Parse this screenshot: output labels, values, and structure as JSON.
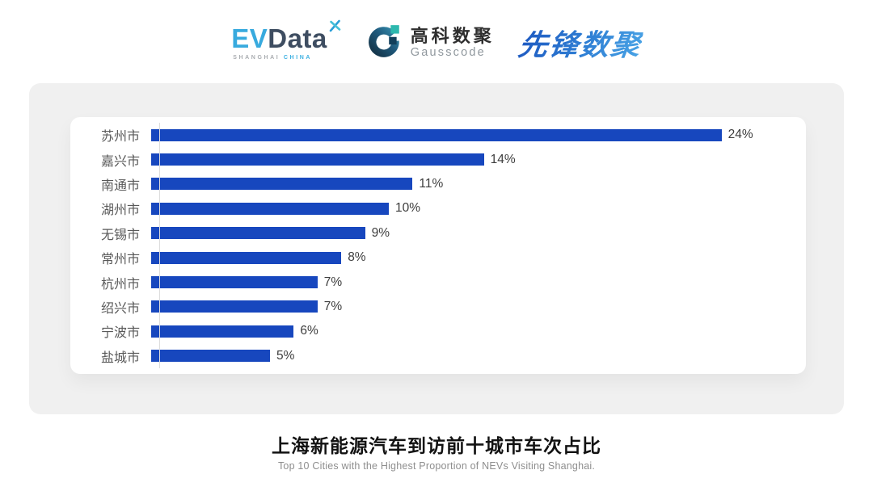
{
  "header": {
    "logos": {
      "evdata": {
        "ev": "EV",
        "data": "Data",
        "sub_left": "SHANGHAI",
        "sub_right": "CHINA"
      },
      "gausscode": {
        "cn": "高科数聚",
        "en": "Gausscode"
      },
      "pioneer": {
        "text": "先锋数聚"
      }
    }
  },
  "chart_data": {
    "type": "bar",
    "orientation": "horizontal",
    "categories": [
      "苏州市",
      "嘉兴市",
      "南通市",
      "湖州市",
      "无锡市",
      "常州市",
      "杭州市",
      "绍兴市",
      "宁波市",
      "盐城市"
    ],
    "values": [
      24,
      14,
      11,
      10,
      9,
      8,
      7,
      7,
      6,
      5
    ],
    "value_labels": [
      "24%",
      "14%",
      "11%",
      "10%",
      "9%",
      "8%",
      "7%",
      "7%",
      "6%",
      "5%"
    ],
    "unit": "%",
    "xlim": [
      0,
      24
    ],
    "grid": false,
    "legend": "none",
    "bar_color": "#1747be",
    "title": "上海新能源汽车到访前十城市车次占比",
    "subtitle": "Top 10 Cities with the Highest Proportion of  NEVs Visiting Shanghai."
  },
  "colors": {
    "panel_gray": "#f0f0f0",
    "card_white": "#ffffff",
    "bar_blue": "#1747be",
    "axis_line": "#dcdcdc",
    "category_label": "#595959",
    "value_label": "#3d3d3d",
    "title_black": "#121212",
    "subtitle_gray": "#8e8e8e",
    "evdata_blue": "#38aade",
    "evdata_navy": "#3e4d61",
    "gauss_teal": "#2db8ae",
    "gauss_dark": "#123f5b",
    "pioneer_blue": "#2f7fd4"
  }
}
